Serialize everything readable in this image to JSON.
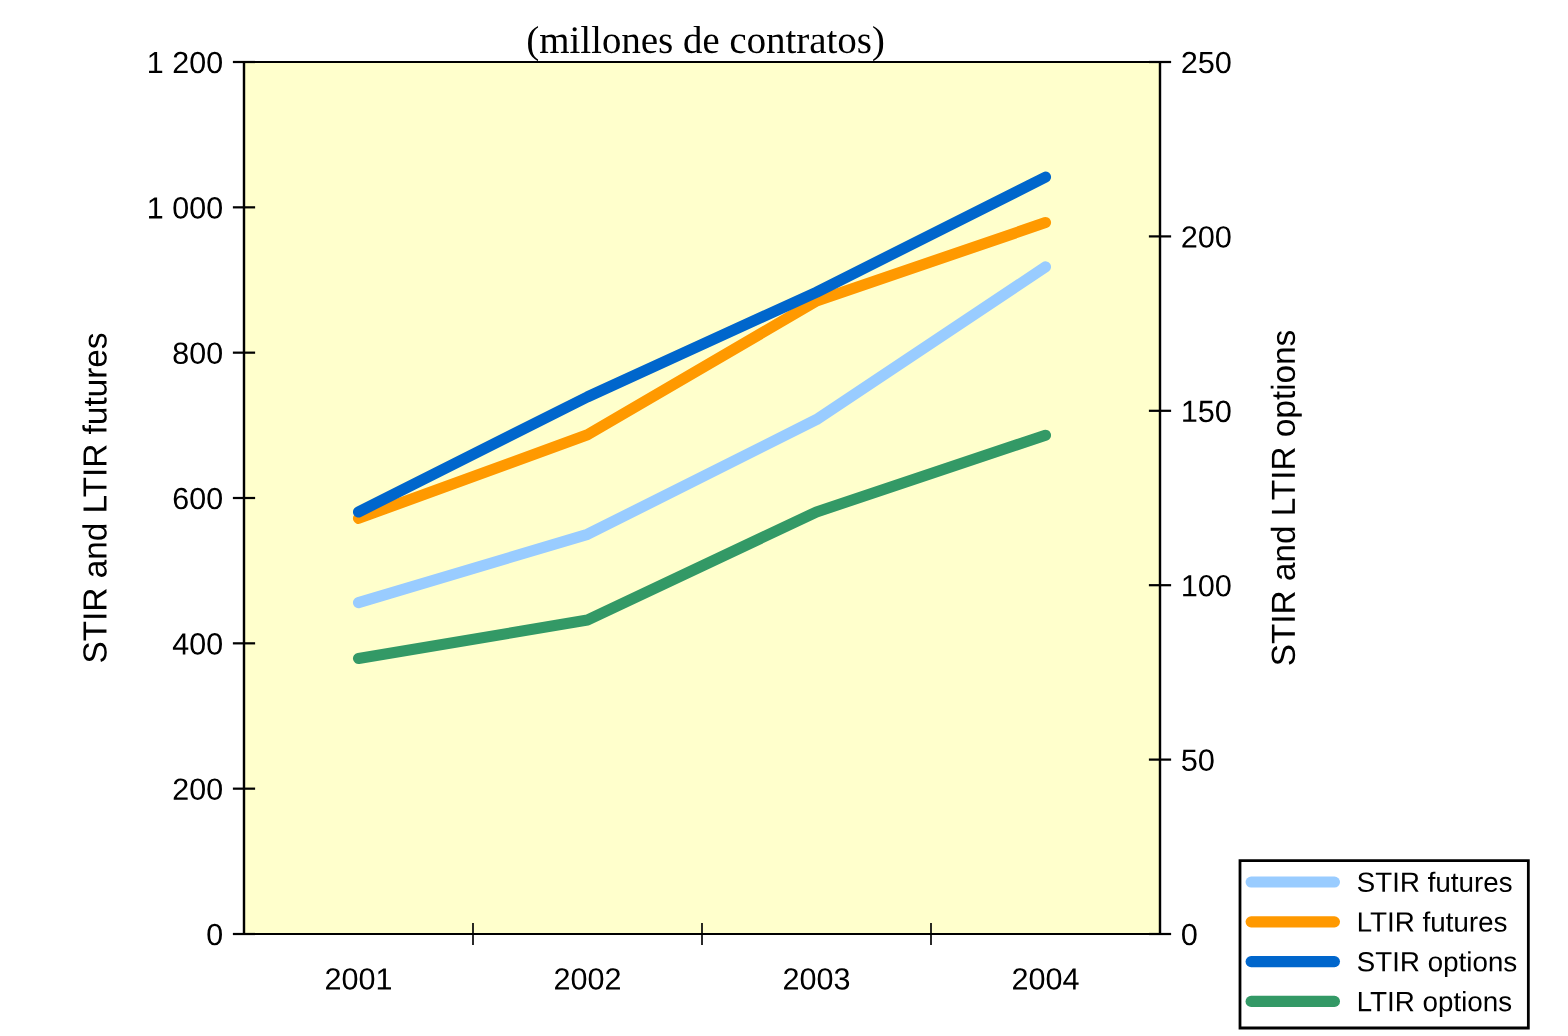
{
  "chart_data": {
    "type": "line",
    "title": "(millones de contratos)",
    "ylabel": "STIR and LTIR futures",
    "y2label": "STIR and LTIR options",
    "categories": [
      "2001",
      "2002",
      "2003",
      "2004"
    ],
    "series": [
      {
        "name": "STIR futures",
        "color": "#99ccff",
        "values": [
          456,
          550,
          708,
          918
        ]
      },
      {
        "name": "LTIR futures",
        "color": "#ff9900",
        "values": [
          572,
          687,
          871,
          979
        ]
      },
      {
        "name": "STIR options",
        "color": "#0066cc",
        "axis": "y2",
        "values": [
          121,
          154,
          184,
          217
        ]
      },
      {
        "name": "LTIR options",
        "color": "#339966",
        "axis": "y2",
        "values": [
          79,
          90,
          121,
          143
        ]
      }
    ],
    "ylim": [
      0,
      1200
    ],
    "yticks": [
      0,
      200,
      400,
      600,
      800,
      {
        "value": 1000,
        "label": "1 000"
      },
      {
        "value": 1200,
        "label": "1 200"
      }
    ],
    "y2lim": [
      0,
      250
    ],
    "y2ticks": [
      0,
      50,
      100,
      150,
      200,
      250
    ],
    "grid": false,
    "legend": "bottom right",
    "marker": "none",
    "line_style": "solid"
  }
}
